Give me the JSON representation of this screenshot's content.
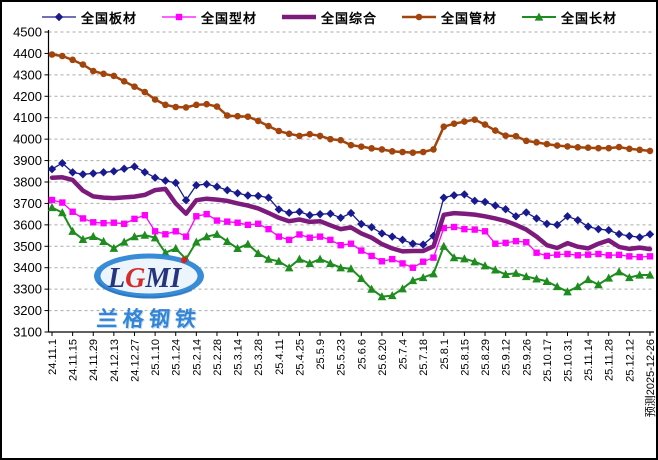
{
  "watermark": {
    "logo_text": "LGMI",
    "company": "兰格钢铁"
  },
  "chart_data": {
    "type": "line",
    "title": "",
    "xlabel": "",
    "ylabel": "",
    "n_points": 59,
    "x_tick_every": 2,
    "x_tick_labels": [
      "24.11.1",
      "24.11.15",
      "24.11.29",
      "24.12.13",
      "24.12.27",
      "25.1.10",
      "25.1.24",
      "25.2.14",
      "25.2.28",
      "25.3.14",
      "25.3.28",
      "25.4.11",
      "25.4.25",
      "25.5.9",
      "25.5.23",
      "25.6.6",
      "25.6.20",
      "25.7.4",
      "25.7.18",
      "25.8.1",
      "25.8.15",
      "25.8.29",
      "25.9.12",
      "25.9.26",
      "25.10.17",
      "25.10.31",
      "25.11.14",
      "25.11.28",
      "25.12.12",
      "预测2025-12-26"
    ],
    "ylim": [
      3100,
      4500
    ],
    "ytick_step": 100,
    "grid": "horizontal-dashed",
    "grid_color": "#aaaaaa",
    "legend_position": "top",
    "series": [
      {
        "name": "全国板材",
        "color": "#1a1a8f",
        "marker": "diamond",
        "line_width": 1.3,
        "values": [
          3860,
          3888,
          3845,
          3836,
          3840,
          3845,
          3850,
          3862,
          3872,
          3846,
          3820,
          3806,
          3796,
          3715,
          3785,
          3790,
          3778,
          3762,
          3748,
          3737,
          3735,
          3727,
          3672,
          3656,
          3661,
          3645,
          3650,
          3652,
          3633,
          3655,
          3604,
          3589,
          3560,
          3545,
          3530,
          3512,
          3508,
          3548,
          3727,
          3738,
          3742,
          3712,
          3707,
          3690,
          3673,
          3640,
          3658,
          3630,
          3605,
          3600,
          3640,
          3622,
          3592,
          3580,
          3575,
          3557,
          3548,
          3542,
          3556
        ]
      },
      {
        "name": "全国型材",
        "color": "#ff00ff",
        "marker": "square",
        "line_width": 1.3,
        "values": [
          3716,
          3704,
          3661,
          3630,
          3612,
          3608,
          3610,
          3605,
          3628,
          3645,
          3570,
          3556,
          3570,
          3545,
          3640,
          3650,
          3620,
          3615,
          3610,
          3600,
          3605,
          3580,
          3545,
          3530,
          3555,
          3540,
          3545,
          3530,
          3505,
          3512,
          3480,
          3455,
          3430,
          3440,
          3420,
          3400,
          3428,
          3447,
          3585,
          3590,
          3580,
          3578,
          3570,
          3512,
          3516,
          3524,
          3519,
          3470,
          3455,
          3461,
          3464,
          3458,
          3461,
          3464,
          3458,
          3460,
          3453,
          3450,
          3453
        ]
      },
      {
        "name": "全国综合",
        "color": "#7d1b7d",
        "marker": "none",
        "line_width": 4.5,
        "values": [
          3820,
          3822,
          3810,
          3760,
          3733,
          3727,
          3725,
          3728,
          3732,
          3740,
          3762,
          3768,
          3700,
          3652,
          3715,
          3722,
          3718,
          3712,
          3700,
          3690,
          3677,
          3656,
          3633,
          3617,
          3625,
          3614,
          3617,
          3598,
          3580,
          3588,
          3560,
          3540,
          3510,
          3490,
          3476,
          3478,
          3478,
          3500,
          3647,
          3655,
          3652,
          3648,
          3640,
          3630,
          3618,
          3600,
          3578,
          3545,
          3505,
          3492,
          3515,
          3498,
          3490,
          3512,
          3528,
          3497,
          3488,
          3494,
          3487
        ]
      },
      {
        "name": "全国管材",
        "color": "#a2450d",
        "marker": "circle",
        "line_width": 2.5,
        "values": [
          4395,
          4388,
          4370,
          4348,
          4318,
          4305,
          4295,
          4270,
          4245,
          4220,
          4185,
          4160,
          4150,
          4148,
          4160,
          4163,
          4152,
          4110,
          4107,
          4105,
          4085,
          4061,
          4038,
          4025,
          4015,
          4023,
          4015,
          4000,
          3995,
          3972,
          3965,
          3957,
          3952,
          3943,
          3940,
          3937,
          3940,
          3952,
          4058,
          4072,
          4082,
          4091,
          4068,
          4040,
          4016,
          4014,
          3992,
          3985,
          3977,
          3970,
          3966,
          3962,
          3960,
          3958,
          3958,
          3963,
          3955,
          3950,
          3945
        ]
      },
      {
        "name": "全国长材",
        "color": "#1f8c1f",
        "marker": "triangle",
        "line_width": 2,
        "values": [
          3681,
          3657,
          3570,
          3532,
          3546,
          3523,
          3491,
          3520,
          3545,
          3552,
          3540,
          3470,
          3490,
          3440,
          3520,
          3545,
          3556,
          3523,
          3490,
          3510,
          3467,
          3440,
          3430,
          3400,
          3440,
          3420,
          3440,
          3420,
          3400,
          3395,
          3350,
          3300,
          3265,
          3270,
          3302,
          3340,
          3354,
          3372,
          3500,
          3447,
          3442,
          3428,
          3409,
          3390,
          3369,
          3374,
          3359,
          3348,
          3336,
          3312,
          3288,
          3312,
          3345,
          3321,
          3352,
          3381,
          3354,
          3366,
          3366
        ]
      }
    ]
  }
}
